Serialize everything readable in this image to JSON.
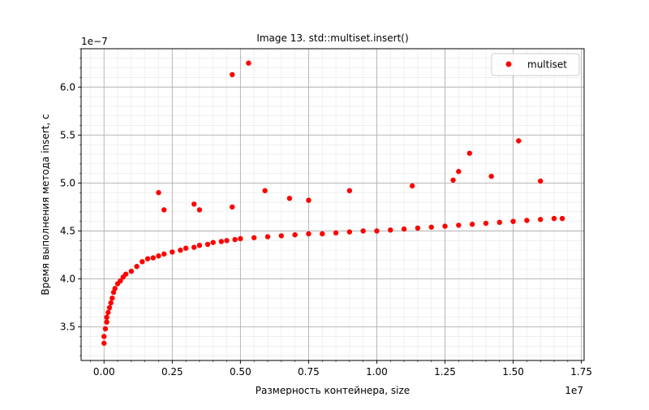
{
  "chart_data": {
    "type": "scatter",
    "title": "Image 13. std::multiset.insert()",
    "xlabel": "Размерность контейнера, size",
    "ylabel": "Время выполнения метода insert, с",
    "x_offset_text": "1e7",
    "y_offset_text": "1e−7",
    "xlim": [
      -0.084,
      1.76
    ],
    "ylim": [
      3.15,
      6.4
    ],
    "x_unit_scale": 10000000,
    "y_unit_scale": 1e-07,
    "x_ticks": [
      0.0,
      0.25,
      0.5,
      0.75,
      1.0,
      1.25,
      1.5,
      1.75
    ],
    "x_tick_labels": [
      "0.00",
      "0.25",
      "0.50",
      "0.75",
      "1.00",
      "1.25",
      "1.50",
      "1.75"
    ],
    "y_ticks": [
      3.5,
      4.0,
      4.5,
      5.0,
      5.5,
      6.0
    ],
    "y_tick_labels": [
      "3.5",
      "4.0",
      "4.5",
      "5.0",
      "5.5",
      "6.0"
    ],
    "grid": {
      "major": true,
      "minor": true
    },
    "legend": {
      "placement": "top-right",
      "entries": [
        "multiset"
      ]
    },
    "series": [
      {
        "name": "multiset",
        "color": "#ff0000",
        "marker": "circle",
        "points": [
          [
            0.0,
            3.33
          ],
          [
            0.0,
            3.4
          ],
          [
            0.005,
            3.48
          ],
          [
            0.01,
            3.55
          ],
          [
            0.01,
            3.6
          ],
          [
            0.015,
            3.65
          ],
          [
            0.02,
            3.7
          ],
          [
            0.025,
            3.75
          ],
          [
            0.03,
            3.8
          ],
          [
            0.035,
            3.86
          ],
          [
            0.04,
            3.9
          ],
          [
            0.05,
            3.95
          ],
          [
            0.06,
            3.98
          ],
          [
            0.07,
            4.02
          ],
          [
            0.08,
            4.05
          ],
          [
            0.1,
            4.08
          ],
          [
            0.12,
            4.13
          ],
          [
            0.14,
            4.18
          ],
          [
            0.16,
            4.21
          ],
          [
            0.18,
            4.22
          ],
          [
            0.2,
            4.24
          ],
          [
            0.22,
            4.26
          ],
          [
            0.25,
            4.28
          ],
          [
            0.28,
            4.3
          ],
          [
            0.3,
            4.32
          ],
          [
            0.33,
            4.33
          ],
          [
            0.35,
            4.35
          ],
          [
            0.38,
            4.36
          ],
          [
            0.4,
            4.38
          ],
          [
            0.43,
            4.39
          ],
          [
            0.45,
            4.4
          ],
          [
            0.48,
            4.41
          ],
          [
            0.5,
            4.42
          ],
          [
            0.55,
            4.43
          ],
          [
            0.6,
            4.44
          ],
          [
            0.65,
            4.45
          ],
          [
            0.7,
            4.46
          ],
          [
            0.75,
            4.47
          ],
          [
            0.8,
            4.47
          ],
          [
            0.85,
            4.48
          ],
          [
            0.9,
            4.49
          ],
          [
            0.95,
            4.5
          ],
          [
            1.0,
            4.5
          ],
          [
            1.05,
            4.51
          ],
          [
            1.1,
            4.52
          ],
          [
            1.15,
            4.53
          ],
          [
            1.2,
            4.54
          ],
          [
            1.25,
            4.55
          ],
          [
            1.3,
            4.56
          ],
          [
            1.35,
            4.57
          ],
          [
            1.4,
            4.58
          ],
          [
            1.45,
            4.59
          ],
          [
            1.5,
            4.6
          ],
          [
            1.55,
            4.61
          ],
          [
            1.6,
            4.62
          ],
          [
            1.65,
            4.63
          ],
          [
            1.68,
            4.63
          ]
        ],
        "outliers": [
          [
            0.47,
            6.13
          ],
          [
            0.53,
            6.25
          ],
          [
            1.52,
            5.44
          ],
          [
            1.34,
            5.31
          ],
          [
            1.3,
            5.12
          ],
          [
            1.28,
            5.03
          ],
          [
            1.42,
            5.07
          ],
          [
            1.6,
            5.02
          ],
          [
            0.59,
            4.92
          ],
          [
            0.2,
            4.9
          ],
          [
            0.22,
            4.72
          ],
          [
            0.33,
            4.78
          ],
          [
            1.13,
            4.97
          ],
          [
            0.9,
            4.92
          ],
          [
            0.35,
            4.72
          ],
          [
            0.47,
            4.75
          ],
          [
            0.75,
            4.82
          ],
          [
            0.68,
            4.84
          ]
        ]
      }
    ]
  }
}
